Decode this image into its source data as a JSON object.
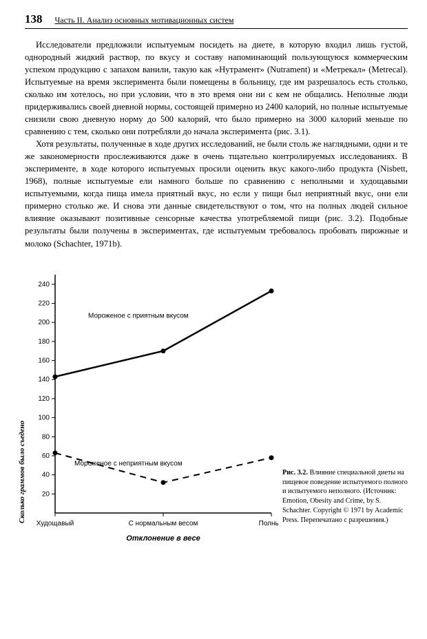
{
  "header": {
    "page_number": "138",
    "part_title": "Часть II. Анализ основных мотивационных систем"
  },
  "paragraphs": {
    "p1": "Исследователи предложили испытуемым посидеть на диете, в которую входил лишь густой, однородный жидкий раствор, по вкусу и составу напоминающий пользующуюся коммерческим успехом продукцию с запахом ванили, такую как «Нутрамент» (Nutrament) и «Метрекал» (Metrecal). Испытуемые на время эксперимента были помещены в больницу, где им разрешалось есть столько, сколько им хотелось, но при условии, что в это время они ни с кем не общались. Неполные люди придерживались своей дневной нормы, состоящей примерно из 2400 калорий, но полные испытуемые снизили свою дневную норму до 500 калорий, что было примерно на 3000 калорий меньше по сравнению с тем, сколько они потребляли до начала эксперимента (рис. 3.1).",
    "p2": "Хотя результаты, полученные в ходе других исследований, не были столь же наглядными, одни и те же закономерности прослеживаются даже в очень тщательно контролируемых исследованиях. В эксперименте, в ходе которого испытуемых просили оценить вкус какого-либо продукта (Nisbett, 1968), полные испытуемые ели намного больше по сравнению с неполными и худощавыми испытуемыми, когда пища имела приятный вкус, но если у пищи был неприятный вкус, они ели примерно столько же. И снова эти данные свидетельствуют о том, что на полных людей сильное влияние оказывают позитивные сенсорные качества употребляемой пищи (рис. 3.2). Подобные результаты были получены в экспериментах, где испытуемым требовалось пробовать пирожные и молоко (Schachter, 1971b)."
  },
  "chart": {
    "type": "line",
    "ylabel": "Сколько граммов было съедено",
    "xlabel": "Отклонение в весе",
    "ylim": [
      0,
      250
    ],
    "ytick_step": 20,
    "yticks": [
      20,
      40,
      60,
      80,
      100,
      120,
      140,
      160,
      180,
      200,
      220,
      240
    ],
    "categories": [
      "Худощавый",
      "С нормальным весом",
      "Полный"
    ],
    "series": [
      {
        "label": "Мороженое с приятным вкусом",
        "values": [
          143,
          170,
          233
        ],
        "style": "solid",
        "line_width": 2.5,
        "marker": "circle",
        "color": "#000000"
      },
      {
        "label": "Мороженое с неприятным вкусом",
        "values": [
          63,
          32,
          58
        ],
        "style": "dashed",
        "line_width": 2,
        "marker": "circle",
        "color": "#000000"
      }
    ],
    "axis_color": "#000000",
    "background_color": "#ffffff",
    "tick_fontsize": 10,
    "label_fontsize": 11,
    "series_label_fontsize": 10
  },
  "caption": {
    "fignum": "Рис. 3.2.",
    "text": "Влияние специальной диеты на пищевое поведение испытуемого полного и испытуемого неполного. (Источник: Emotion, Obesity and Crime, by S. Schachter. Copyright © 1971 by Academic Press. Перепечатано с разрешения.)"
  }
}
